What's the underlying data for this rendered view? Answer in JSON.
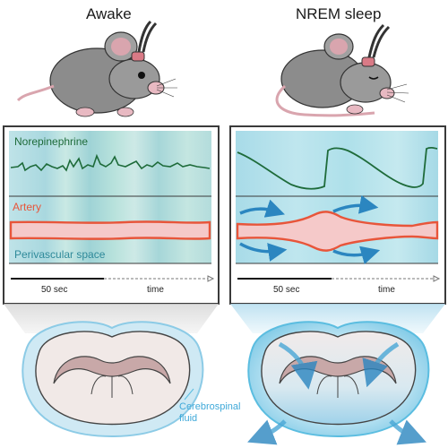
{
  "conditions": [
    {
      "label": "Awake"
    },
    {
      "label": "NREM sleep"
    }
  ],
  "panel_labels": {
    "norepinephrine": "Norepinephrine",
    "artery": "Artery",
    "perivascular": "Perivascular space"
  },
  "timebar": {
    "scale_label": "50 sec",
    "axis_label": "time"
  },
  "csf_label": "Cerebrospinal\nfluid",
  "colors": {
    "norepinephrine": "#1e6b3a",
    "artery": "#e8553a",
    "artery_fill": "#f5c9c9",
    "csf": "#5bbde0",
    "panel_frame": "#3a3a3a",
    "brain_tissue": "#f1e9e7",
    "white_matter": "#c8a8a8"
  },
  "icons": [
    "mouse-awake-icon",
    "mouse-sleeping-icon",
    "brain-section-icon",
    "flow-arrow-icon"
  ]
}
